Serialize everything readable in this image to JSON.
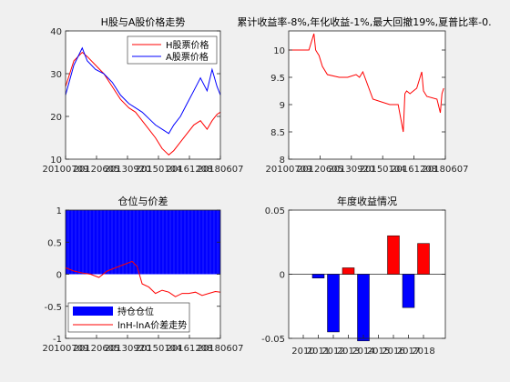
{
  "figure": {
    "background": "#f0f0f0",
    "axes_background": "#ffffff",
    "axis_color": "#262626"
  },
  "chart_data": [
    {
      "id": "price",
      "type": "line",
      "title": "H股与A股价格走势",
      "xlim": [
        2010,
        2019.3
      ],
      "ylim": [
        10,
        40
      ],
      "yticks": [
        10,
        20,
        30,
        40
      ],
      "xtick_labels": [
        "20100709",
        "20120605",
        "20130920",
        "20150104",
        "20161208",
        "20180607"
      ],
      "legend": {
        "location": "top-right",
        "entries": [
          "H股票价格",
          "A股票价格"
        ]
      },
      "series": [
        {
          "name": "H股票价格",
          "color": "#ff0000",
          "x": [
            2010.0,
            2010.5,
            2011.0,
            2011.3,
            2011.8,
            2012.3,
            2012.8,
            2013.3,
            2013.8,
            2014.2,
            2014.6,
            2015.0,
            2015.4,
            2015.8,
            2016.2,
            2016.5,
            2016.9,
            2017.3,
            2017.7,
            2018.1,
            2018.5,
            2018.8,
            2019.1,
            2019.3
          ],
          "y": [
            27,
            33,
            35,
            34,
            32,
            30,
            27,
            24,
            22,
            21,
            19,
            17,
            15,
            12.5,
            11,
            12,
            14,
            16,
            18,
            19,
            17,
            19,
            20.5,
            21
          ]
        },
        {
          "name": "A股票价格",
          "color": "#0000ff",
          "x": [
            2010.0,
            2010.5,
            2011.0,
            2011.3,
            2011.8,
            2012.3,
            2012.8,
            2013.3,
            2013.8,
            2014.2,
            2014.6,
            2015.0,
            2015.4,
            2015.8,
            2016.2,
            2016.5,
            2016.9,
            2017.3,
            2017.7,
            2018.1,
            2018.5,
            2018.8,
            2019.1,
            2019.3
          ],
          "y": [
            25,
            32,
            36,
            33,
            31,
            30,
            28,
            25,
            23,
            22,
            21,
            19.5,
            18,
            17,
            16,
            18,
            20,
            23,
            26,
            29,
            26,
            31,
            27,
            25
          ]
        }
      ]
    },
    {
      "id": "equity",
      "type": "line",
      "title": "累计收益率-8%,年化收益-1%,最大回撤19%,夏普比率-0.",
      "xlim": [
        2010,
        2019.3
      ],
      "ylim": [
        8,
        10.35
      ],
      "yticks": [
        8,
        8.5,
        9,
        9.5,
        10
      ],
      "xtick_labels": [
        "20100709",
        "20120605",
        "20130920",
        "20150104",
        "20161208",
        "20180607"
      ],
      "series": [
        {
          "name": "",
          "color": "#ff0000",
          "x": [
            2010.0,
            2011.2,
            2011.5,
            2011.6,
            2011.7,
            2011.8,
            2012.0,
            2012.3,
            2013.0,
            2013.5,
            2014.0,
            2014.2,
            2014.4,
            2015.0,
            2015.5,
            2016.0,
            2016.5,
            2016.8,
            2016.9,
            2017.0,
            2017.2,
            2017.6,
            2017.9,
            2018.0,
            2018.2,
            2018.8,
            2019.0,
            2019.1,
            2019.2
          ],
          "y": [
            10.0,
            10.0,
            10.3,
            10.0,
            9.95,
            9.9,
            9.7,
            9.55,
            9.5,
            9.5,
            9.55,
            9.5,
            9.6,
            9.1,
            9.05,
            9.0,
            9.0,
            8.5,
            9.2,
            9.25,
            9.2,
            9.3,
            9.6,
            9.25,
            9.15,
            9.1,
            8.85,
            9.2,
            9.3
          ]
        }
      ]
    },
    {
      "id": "position",
      "type": "area",
      "title": "仓位与价差",
      "xlim": [
        2010,
        2019.3
      ],
      "ylim": [
        -1,
        1
      ],
      "yticks": [
        -1,
        -0.5,
        0,
        0.5,
        1
      ],
      "xtick_labels": [
        "20100709",
        "20120605",
        "20130920",
        "20150104",
        "20161208",
        "20180607"
      ],
      "legend": {
        "location": "bottom-left",
        "entries": [
          "持仓仓位",
          "lnH-lnA价差走势"
        ]
      },
      "series": [
        {
          "name": "持仓仓位",
          "color": "#0000ff",
          "x": [
            2010.0,
            2019.3
          ],
          "y": [
            1,
            1
          ]
        },
        {
          "name": "lnH-lnA价差走势",
          "color": "#ff0000",
          "x": [
            2010.0,
            2010.5,
            2011.0,
            2011.5,
            2012.0,
            2012.5,
            2013.0,
            2013.5,
            2014.0,
            2014.3,
            2014.6,
            2015.0,
            2015.4,
            2015.8,
            2016.2,
            2016.6,
            2017.0,
            2017.4,
            2017.8,
            2018.2,
            2018.6,
            2019.0,
            2019.3
          ],
          "y": [
            0.1,
            0.05,
            0.02,
            0.0,
            -0.05,
            0.05,
            0.1,
            0.15,
            0.2,
            0.12,
            -0.15,
            -0.2,
            -0.3,
            -0.25,
            -0.28,
            -0.35,
            -0.3,
            -0.3,
            -0.28,
            -0.33,
            -0.3,
            -0.27,
            -0.28
          ]
        }
      ]
    },
    {
      "id": "annual",
      "type": "bar",
      "title": "年度收益情况",
      "ylim": [
        -0.05,
        0.05
      ],
      "yticks": [
        -0.05,
        0,
        0.05
      ],
      "categories": [
        "2010",
        "2011",
        "2012",
        "2013",
        "2014",
        "2015",
        "2016",
        "2017",
        "2018"
      ],
      "values": [
        0,
        -0.003,
        -0.045,
        0.005,
        -0.052,
        0,
        0.03,
        -0.026,
        0.024
      ],
      "colors": [
        "#0000ff",
        "#0000ff",
        "#0000ff",
        "#ff0000",
        "#0000ff",
        "#0000ff",
        "#ff0000",
        "#0000ff",
        "#ff0000"
      ]
    }
  ]
}
